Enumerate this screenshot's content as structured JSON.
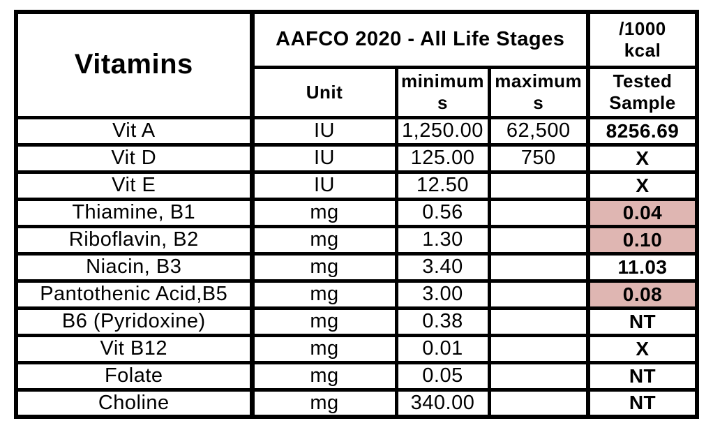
{
  "page": {
    "background_color": "#ffffff",
    "border_color": "#000000",
    "highlight_color": "#dfb6b2",
    "text_color": "#000000"
  },
  "table": {
    "title": "Vitamins",
    "group_header": "AAFCO 2020 - All Life Stages",
    "per_kcal_header": {
      "full": "/1000 kcal",
      "line1": "/1000",
      "line2": "kcal"
    },
    "col_headers": {
      "unit": "Unit",
      "minimums": {
        "full": "minimums",
        "line1": "minimum",
        "line2": "s"
      },
      "maximums": {
        "full": "maximums",
        "line1": "maximum",
        "line2": "s"
      },
      "tested_sample": {
        "full": "Tested Sample",
        "line1": "Tested",
        "line2": "Sample"
      }
    },
    "rows": [
      {
        "name": "Vit A",
        "unit": "IU",
        "min": "1,250.00",
        "max": "62,500",
        "tested": "8256.69",
        "highlight": false
      },
      {
        "name": "Vit D",
        "unit": "IU",
        "min": "125.00",
        "max": "750",
        "tested": "X",
        "highlight": false
      },
      {
        "name": "Vit E",
        "unit": "IU",
        "min": "12.50",
        "max": "",
        "tested": "X",
        "highlight": false
      },
      {
        "name": "Thiamine, B1",
        "unit": "mg",
        "min": "0.56",
        "max": "",
        "tested": "0.04",
        "highlight": true
      },
      {
        "name": "Riboflavin, B2",
        "unit": "mg",
        "min": "1.30",
        "max": "",
        "tested": "0.10",
        "highlight": true
      },
      {
        "name": "Niacin, B3",
        "unit": "mg",
        "min": "3.40",
        "max": "",
        "tested": "11.03",
        "highlight": false
      },
      {
        "name": "Pantothenic Acid,B5",
        "unit": "mg",
        "min": "3.00",
        "max": "",
        "tested": "0.08",
        "highlight": true
      },
      {
        "name": "B6 (Pyridoxine)",
        "unit": "mg",
        "min": "0.38",
        "max": "",
        "tested": "NT",
        "highlight": false
      },
      {
        "name": "Vit B12",
        "unit": "mg",
        "min": "0.01",
        "max": "",
        "tested": "X",
        "highlight": false
      },
      {
        "name": "Folate",
        "unit": "mg",
        "min": "0.05",
        "max": "",
        "tested": "NT",
        "highlight": false
      },
      {
        "name": "Choline",
        "unit": "mg",
        "min": "340.00",
        "max": "",
        "tested": "NT",
        "highlight": false
      }
    ]
  }
}
